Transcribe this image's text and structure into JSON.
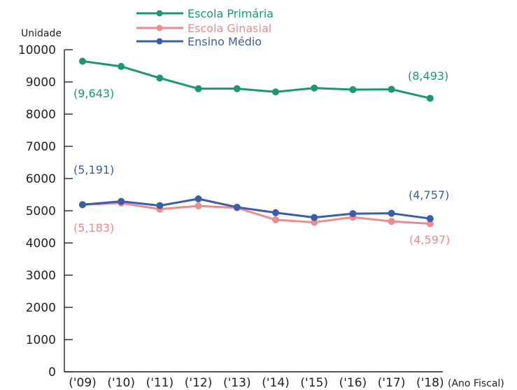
{
  "chart_data": {
    "type": "line",
    "ylabel": "Unidade",
    "xlabel": "(Ano Fiscal)",
    "ylim": [
      0,
      10000
    ],
    "yticks": [
      0,
      1000,
      2000,
      3000,
      4000,
      5000,
      6000,
      7000,
      8000,
      9000,
      10000
    ],
    "categories": [
      "('09)",
      "('10)",
      "('11)",
      "('12)",
      "('13)",
      "('14)",
      "('15)",
      "('16)",
      "('17)",
      "('18)"
    ],
    "legend_position": "top",
    "grid": false,
    "series": [
      {
        "name": "Escola Primária",
        "color": "#1a9a6c",
        "values": [
          9643,
          9480,
          9120,
          8790,
          8790,
          8690,
          8810,
          8760,
          8770,
          8493
        ],
        "start_label": "(9,643)",
        "end_label": "(8,493)"
      },
      {
        "name": "Escola Ginasial",
        "color": "#ef8a8e",
        "values": [
          5183,
          5240,
          5050,
          5150,
          5090,
          4720,
          4640,
          4800,
          4670,
          4597
        ],
        "start_label": "(5,183)",
        "end_label": "(4,597)"
      },
      {
        "name": "Ensino Médio",
        "color": "#3a5fa8",
        "values": [
          5191,
          5290,
          5160,
          5370,
          5110,
          4940,
          4790,
          4910,
          4920,
          4757
        ],
        "start_label": "(5,191)",
        "end_label": "(4,757)"
      }
    ]
  }
}
